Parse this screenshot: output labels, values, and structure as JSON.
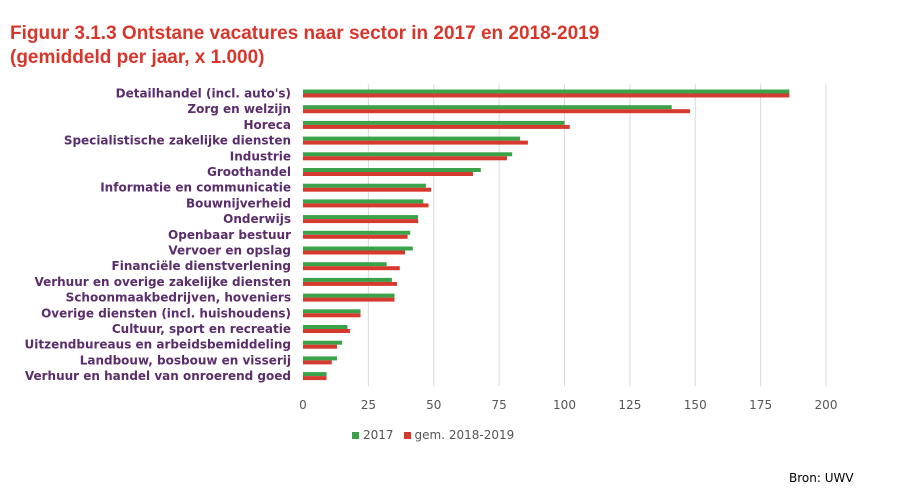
{
  "title_line1": "Figuur 3.1.3 Ontstane vacatures naar sector in 2017 en 2018-2019",
  "title_line2": "(gemiddeld per jaar, x 1.000)",
  "source": "Bron: UWV",
  "colors": {
    "title": "#d8362b",
    "series_2017": "#3aa34a",
    "series_gem": "#d63a2f",
    "category_text": "#5a2d6b",
    "grid": "#d9d9d9"
  },
  "chart_data": {
    "type": "bar",
    "orientation": "horizontal",
    "categories": [
      "Detailhandel (incl. auto's)",
      "Zorg en welzijn",
      "Horeca",
      "Specialistische zakelijke diensten",
      "Industrie",
      "Groothandel",
      "Informatie en communicatie",
      "Bouwnijverheid",
      "Onderwijs",
      "Openbaar bestuur",
      "Vervoer en opslag",
      "Financiële dienstverlening",
      "Verhuur en overige zakelijke diensten",
      "Schoonmaakbedrijven, hoveniers",
      "Overige diensten (incl. huishoudens)",
      "Cultuur, sport en recreatie",
      "Uitzendbureaus en arbeidsbemiddeling",
      "Landbouw, bosbouw en visserij",
      "Verhuur en handel van onroerend goed"
    ],
    "series": [
      {
        "name": "2017",
        "values": [
          186,
          141,
          100,
          83,
          80,
          68,
          47,
          46,
          44,
          41,
          42,
          32,
          34,
          35,
          22,
          17,
          15,
          13,
          9
        ]
      },
      {
        "name": "gem. 2018-2019",
        "values": [
          186,
          148,
          102,
          86,
          78,
          65,
          49,
          48,
          44,
          40,
          39,
          37,
          36,
          35,
          22,
          18,
          13,
          11,
          9
        ]
      }
    ],
    "xticks": [
      0,
      25,
      50,
      75,
      100,
      125,
      150,
      175,
      200
    ],
    "xlim": [
      0,
      200
    ],
    "grid": true,
    "legend": "bottom"
  }
}
